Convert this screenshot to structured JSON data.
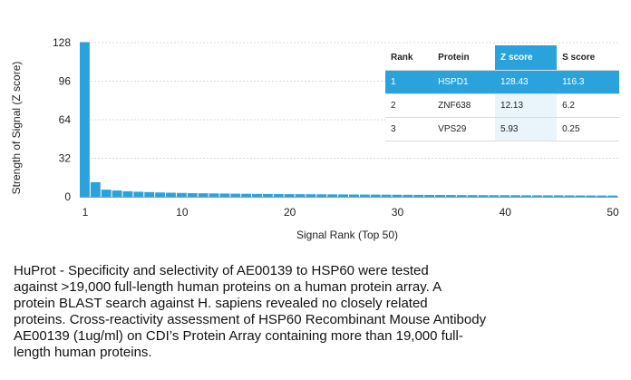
{
  "chart_data": {
    "type": "bar",
    "xlabel": "Signal Rank (Top 50)",
    "ylabel": "Strength of Signal (Z score)",
    "x_ticks": [
      1,
      10,
      20,
      30,
      40,
      50
    ],
    "y_ticks": [
      0,
      32,
      64,
      96,
      128
    ],
    "xlim": [
      1,
      50
    ],
    "ylim": [
      0,
      128
    ],
    "bar_color": "#2aa3dc",
    "x": [
      1,
      2,
      3,
      4,
      5,
      6,
      7,
      8,
      9,
      10,
      11,
      12,
      13,
      14,
      15,
      16,
      17,
      18,
      19,
      20,
      21,
      22,
      23,
      24,
      25,
      26,
      27,
      28,
      29,
      30,
      31,
      32,
      33,
      34,
      35,
      36,
      37,
      38,
      39,
      40,
      41,
      42,
      43,
      44,
      45,
      46,
      47,
      48,
      49,
      50
    ],
    "values": [
      128.43,
      12.13,
      5.93,
      5.2,
      4.6,
      4.2,
      3.9,
      3.6,
      3.4,
      3.2,
      3.0,
      2.9,
      2.8,
      2.7,
      2.6,
      2.5,
      2.4,
      2.35,
      2.3,
      2.2,
      2.15,
      2.1,
      2.05,
      2.0,
      1.95,
      1.9,
      1.85,
      1.8,
      1.75,
      1.7,
      1.65,
      1.6,
      1.55,
      1.5,
      1.45,
      1.4,
      1.38,
      1.35,
      1.32,
      1.3,
      1.28,
      1.25,
      1.22,
      1.2,
      1.18,
      1.15,
      1.12,
      1.1,
      1.08,
      1.05
    ]
  },
  "table": {
    "headers": [
      "Rank",
      "Protein",
      "Z score",
      "S score"
    ],
    "highlight_color": "#2aa3dc",
    "rows": [
      [
        "1",
        "HSPD1",
        "128.43",
        "116.3"
      ],
      [
        "2",
        "ZNF638",
        "12.13",
        "6.2"
      ],
      [
        "3",
        "VPS29",
        "5.93",
        "0.25"
      ]
    ]
  },
  "caption": {
    "line1": "HuProt  -  Specificity and selectivity of AE00139 to HSP60 were tested",
    "line2": "against >19,000 full-length human proteins on a human protein array. A",
    "line3": "protein BLAST search against H. sapiens revealed no closely related",
    "line4": "proteins.  Cross-reactivity assessment of HSP60 Recombinant Mouse Antibody",
    "line5": "AE00139 (1ug/ml) on CDI’s Protein Array containing more than 19,000 full-",
    "line6": "length human proteins."
  }
}
